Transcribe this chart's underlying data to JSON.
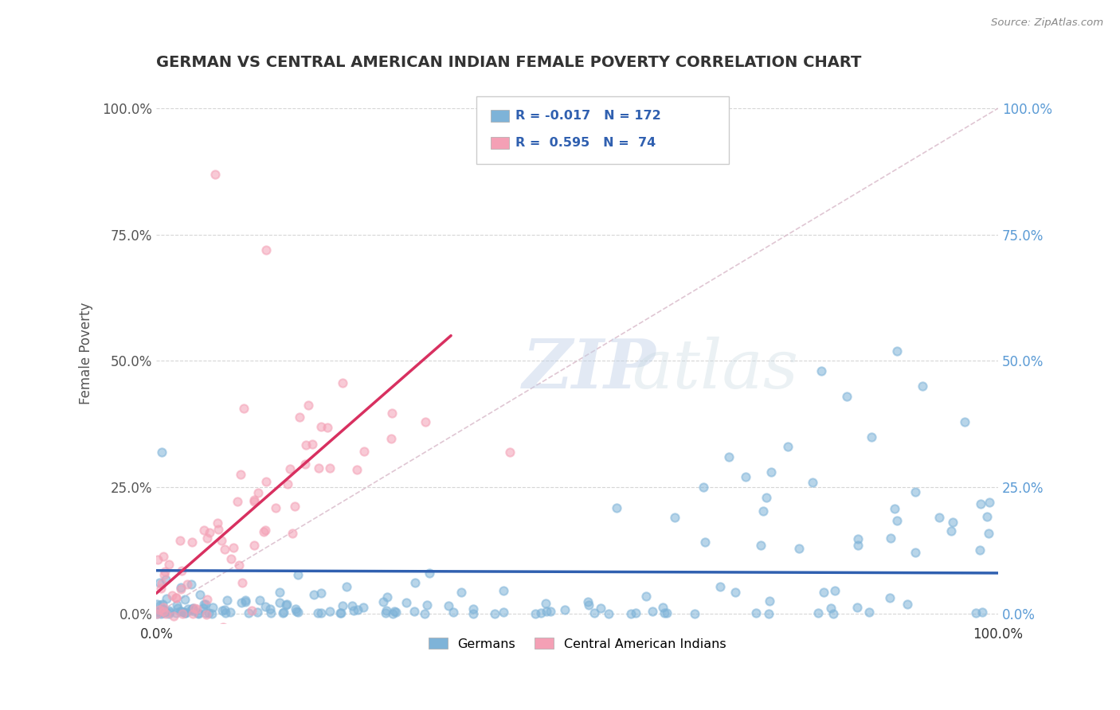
{
  "title": "GERMAN VS CENTRAL AMERICAN INDIAN FEMALE POVERTY CORRELATION CHART",
  "source": "Source: ZipAtlas.com",
  "ylabel": "Female Poverty",
  "xlim": [
    0.0,
    1.0
  ],
  "ylim": [
    -0.02,
    1.05
  ],
  "xtick_labels": [
    "0.0%",
    "100.0%"
  ],
  "ytick_labels": [
    "0.0%",
    "25.0%",
    "50.0%",
    "75.0%",
    "100.0%"
  ],
  "ytick_values": [
    0.0,
    0.25,
    0.5,
    0.75,
    1.0
  ],
  "german_color": "#7eb3d8",
  "ca_indian_color": "#f4a0b5",
  "german_line_color": "#3060b0",
  "ca_indian_line_color": "#d83060",
  "diagonal_color": "#cccccc",
  "r_german": -0.017,
  "n_german": 172,
  "r_ca_indian": 0.595,
  "n_ca_indian": 74,
  "watermark_zip": "ZIP",
  "watermark_atlas": "atlas",
  "legend_labels": [
    "Germans",
    "Central American Indians"
  ],
  "title_color": "#333333",
  "axis_label_color": "#555555",
  "legend_r_color": "#3060b0",
  "legend_n_color": "#3060b0",
  "grid_color": "#cccccc",
  "background_color": "#ffffff",
  "plot_bg_color": "#ffffff",
  "right_tick_color": "#5b9bd5"
}
